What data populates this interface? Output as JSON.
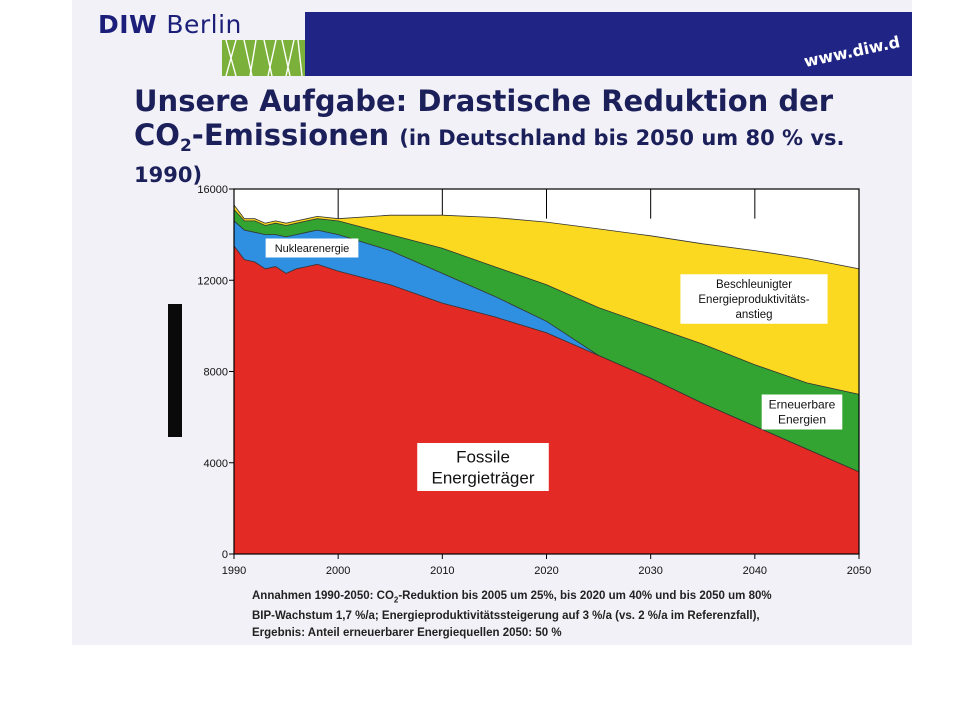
{
  "header": {
    "logo_bold": "DIW",
    "logo_light": "Berlin",
    "url": "www.diw.d"
  },
  "title": {
    "line1": "Unsere Aufgabe: Drastische Reduktion der",
    "line2_main_pre": "CO",
    "line2_main_sub": "2",
    "line2_main_post": "-Emissionen",
    "line2_note": "(in Deutschland bis  2050 um 80 % vs. 1990)"
  },
  "chart_data": {
    "type": "area",
    "title": "",
    "xlabel": "",
    "ylabel": "",
    "xlim": [
      1990,
      2050
    ],
    "ylim": [
      0,
      16000
    ],
    "x_ticks": [
      1990,
      2000,
      2010,
      2020,
      2030,
      2040,
      2050
    ],
    "y_ticks": [
      0,
      4000,
      8000,
      12000,
      16000
    ],
    "grid": "vertical lines at upper part of plot",
    "stacking": "cumulative top boundaries",
    "series": [
      {
        "name": "Fossile Energieträger",
        "color": "#e32a25",
        "x": [
          1990,
          1991,
          1992,
          1993,
          1994,
          1995,
          1996,
          1997,
          1998,
          2000,
          2005,
          2010,
          2015,
          2020,
          2025,
          2030,
          2035,
          2040,
          2045,
          2050
        ],
        "y": [
          13500,
          12900,
          12800,
          12500,
          12600,
          12300,
          12500,
          12600,
          12700,
          12400,
          11800,
          11000,
          10400,
          9700,
          8700,
          7700,
          6600,
          5600,
          4600,
          3600
        ]
      },
      {
        "name": "Nuklearenergie",
        "color": "#2f8fe0",
        "x": [
          1990,
          1991,
          1992,
          1993,
          1994,
          1995,
          1996,
          1997,
          1998,
          2000,
          2005,
          2010,
          2015,
          2020,
          2025,
          2030,
          2035,
          2040,
          2045,
          2050
        ],
        "y": [
          14600,
          14200,
          14100,
          14000,
          14000,
          13900,
          14000,
          14100,
          14200,
          14000,
          13300,
          12300,
          11300,
          10200,
          8700,
          7700,
          6600,
          5600,
          4600,
          3600
        ]
      },
      {
        "name": "Erneuerbare Energien",
        "color": "#33a432",
        "x": [
          1990,
          1991,
          1992,
          1993,
          1994,
          1995,
          1996,
          1997,
          1998,
          2000,
          2005,
          2010,
          2015,
          2020,
          2025,
          2030,
          2035,
          2040,
          2045,
          2050
        ],
        "y": [
          15100,
          14600,
          14600,
          14400,
          14500,
          14400,
          14500,
          14600,
          14700,
          14600,
          14000,
          13400,
          12600,
          11800,
          10800,
          10000,
          9200,
          8300,
          7500,
          7000
        ]
      },
      {
        "name": "Beschleunigter Energieproduktivitäts-anstieg",
        "color": "#fbd920",
        "x": [
          1990,
          1991,
          1992,
          1993,
          1994,
          1995,
          1996,
          1997,
          1998,
          2000,
          2005,
          2010,
          2015,
          2020,
          2025,
          2030,
          2035,
          2040,
          2045,
          2050
        ],
        "y": [
          15300,
          14700,
          14700,
          14500,
          14600,
          14500,
          14600,
          14700,
          14800,
          14700,
          14850,
          14850,
          14750,
          14550,
          14250,
          13950,
          13600,
          13300,
          12950,
          12500
        ]
      }
    ],
    "labels": {
      "nuclear": "Nuklearenergie",
      "fossil": [
        "Fossile",
        "Energieträger"
      ],
      "renewable": [
        "Erneuerbare",
        "Energien"
      ],
      "productivity": [
        "Beschleunigter",
        "Energieproduktivitäts-",
        "anstieg"
      ]
    }
  },
  "notes": {
    "line1_pre": "Annahmen 1990-2050: CO",
    "line1_sub": "2",
    "line1_post": "-Reduktion bis 2005 um 25%, bis 2020 um 40% und bis 2050 um 80%",
    "line2": "BIP-Wachstum 1,7 %/a; Energieproduktivitätssteigerung auf 3 %/a (vs. 2 %/a im Referenzfall),",
    "line3": "Ergebnis: Anteil erneuerbarer Energiequellen 2050: 50 %"
  },
  "colors": {
    "brand_blue": "#1f2485",
    "title_color": "#1b1f5a"
  }
}
